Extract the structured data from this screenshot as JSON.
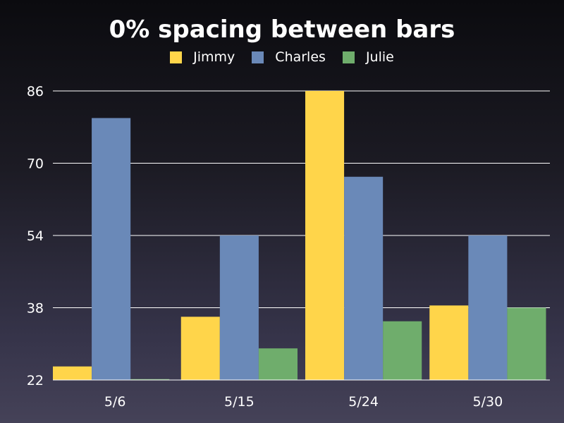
{
  "chart_data": {
    "type": "bar",
    "title": "0% spacing between bars",
    "categories": [
      "5/6",
      "5/15",
      "5/24",
      "5/30"
    ],
    "series": [
      {
        "name": "Jimmy",
        "color": "#ffd54a",
        "values": [
          25,
          36,
          86,
          38.5
        ]
      },
      {
        "name": "Charles",
        "color": "#6a89b8",
        "values": [
          80,
          54,
          67,
          54
        ]
      },
      {
        "name": "Julie",
        "color": "#6fad6c",
        "values": [
          22.2,
          29,
          35,
          38
        ]
      }
    ],
    "yticks": [
      22,
      38,
      54,
      70,
      86
    ],
    "ylim": [
      22,
      86
    ],
    "grid": true,
    "legend_position": "top-center"
  }
}
